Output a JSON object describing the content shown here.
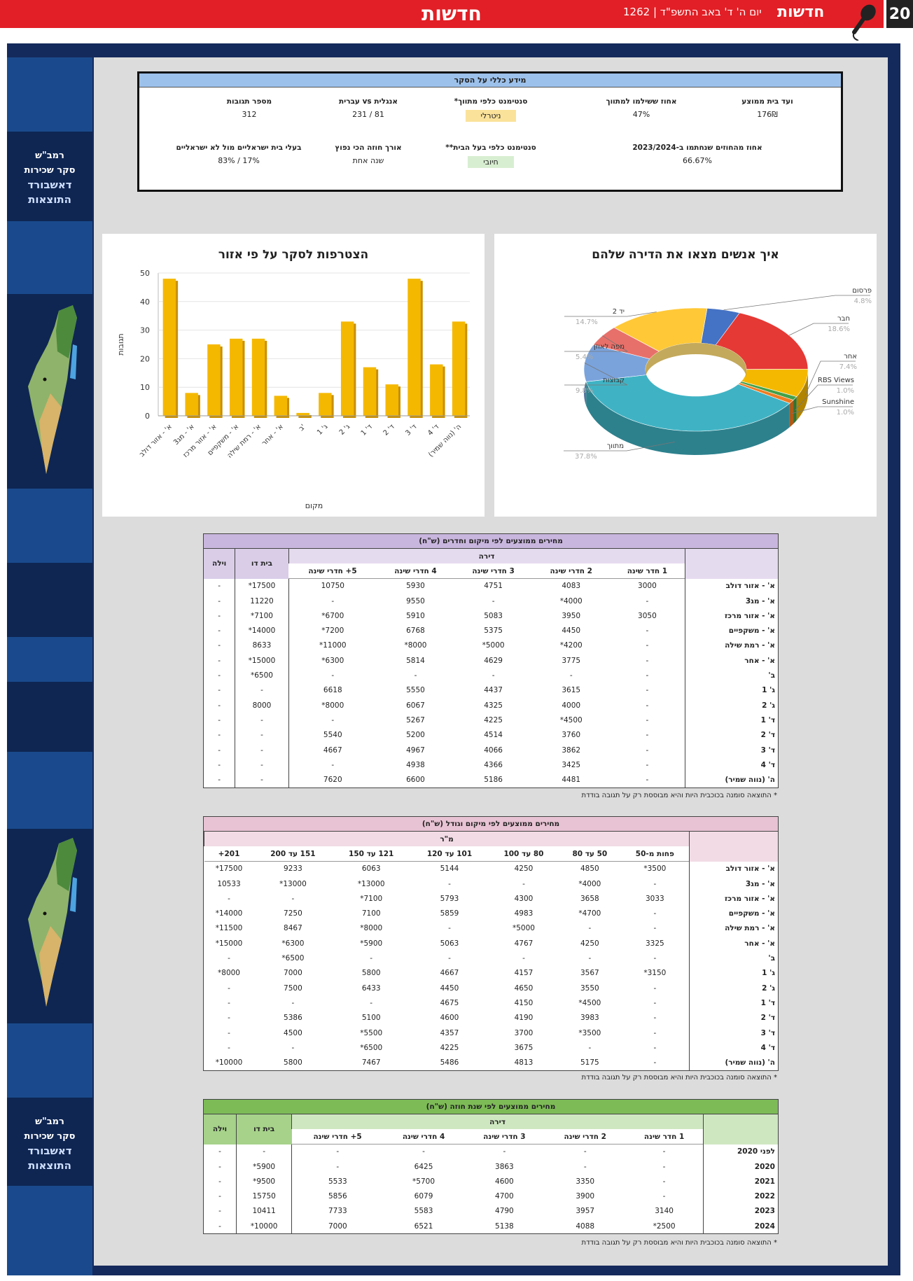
{
  "header": {
    "page_number": "20",
    "section": "חדשות",
    "date": "יום ה' ד' באב התשפ\"ד | 1262",
    "brand": "חדשות"
  },
  "side": {
    "label1_a": "רמב\"ש",
    "label1_b": "סקר שכירות",
    "label1_c": "דאשבורד",
    "label1_d": "התוצאות",
    "label2_a": "רמב\"ש",
    "label2_b": "סקר שכירות",
    "label2_c": "דאשבורד",
    "label2_d": "התוצאות"
  },
  "info": {
    "title": "מידע כללי על הסקר",
    "cells": [
      {
        "label": "ועד בית ממוצע",
        "value": "176₪"
      },
      {
        "label": "אחוז ששילמו למתווך",
        "value": "47%"
      },
      {
        "label": "סנטימנט כלפי מתווך*",
        "value": "ניטרלי"
      },
      {
        "label": "אנגלית vs עברית",
        "value": "81 / 231"
      },
      {
        "label": "מספר תגובות",
        "value": "312"
      },
      {
        "label": "אחוז מהחוזים שנחתמו ב-2023/2024",
        "value": "66.67%"
      },
      {
        "label": "סנטימנט כלפי בעל הבית**",
        "value": "חיובי"
      },
      {
        "label": "אורך חוזה הכי נפוץ",
        "value": "שנה אחת"
      },
      {
        "label": "בעלי בית ישראליים מול לא ישראליים",
        "value": "17% / 83%"
      }
    ]
  },
  "pie": {
    "title": "איך אנשים מצאו את הדירה שלהם",
    "slices": [
      {
        "name": "פרסום",
        "pct": "4.8%",
        "value": 4.8,
        "color": "#4472c4"
      },
      {
        "name": "חבר",
        "pct": "18.6%",
        "value": 18.6,
        "color": "#e53935"
      },
      {
        "name": "אחר",
        "pct": "7.4%",
        "value": 7.4,
        "color": "#f5b800"
      },
      {
        "name": "RBS Views",
        "pct": "1.0%",
        "value": 1.0,
        "color": "#43a047"
      },
      {
        "name": "Sunshine",
        "pct": "1.0%",
        "value": 1.0,
        "color": "#ef7d22"
      },
      {
        "name": "מתווך",
        "pct": "37.8%",
        "value": 37.8,
        "color": "#3fb3c4"
      },
      {
        "name": "קבוצות",
        "pct": "9.8%",
        "value": 9.8,
        "color": "#7aa3dc"
      },
      {
        "name": "מפה לאוזן",
        "pct": "5.4%",
        "value": 5.4,
        "color": "#e8706a"
      },
      {
        "name": "יד 2",
        "pct": "14.7%",
        "value": 14.7,
        "color": "#ffc837"
      }
    ]
  },
  "chart_data": {
    "type": "bar",
    "title": "הצטרפות לסקר על פי אזור",
    "xlabel": "מקום",
    "ylabel": "תגובות",
    "ylim": [
      0,
      50
    ],
    "yticks": [
      "0",
      "10",
      "20",
      "30",
      "40",
      "50"
    ],
    "categories": [
      "א' - אזור דולב",
      "א' - מג3",
      "א' - אזור מרכז",
      "א' - משקפיים",
      "א' - רמת שילה",
      "א' - אחר",
      "ב'",
      "ג' 1",
      "ג' 2",
      "ד' 1",
      "ד' 2",
      "ד' 3",
      "ד' 4",
      "ה' (נווה שמיר)"
    ],
    "values": [
      48,
      8,
      25,
      27,
      27,
      7,
      1,
      8,
      33,
      17,
      11,
      48,
      18,
      33
    ]
  },
  "table1": {
    "caption": "מחירים ממוצעים לפי מיקום וחדרים (ש\"ח)",
    "group": "דירה",
    "h_house": "בית דו",
    "h_villa": "וילה",
    "cols": [
      "1 חדר שינה",
      "2 חדרי שינה",
      "3 חדרי שינה",
      "4 חדרי שינה",
      "5+ חדרי שינה"
    ],
    "rows": [
      {
        "label": "א' - אזור דולב",
        "cells": [
          "3000",
          "4083",
          "4751",
          "5930",
          "10750",
          "17500*",
          "-"
        ]
      },
      {
        "label": "א' - מג3",
        "cells": [
          "-",
          "4000*",
          "-",
          "9550",
          "-",
          "11220",
          "-"
        ]
      },
      {
        "label": "א' - אזור מרכז",
        "cells": [
          "3050",
          "3950",
          "5083",
          "5910",
          "6700*",
          "7100*",
          "-"
        ]
      },
      {
        "label": "א' - משקפיים",
        "cells": [
          "-",
          "4450",
          "5375",
          "6768",
          "7200*",
          "14000*",
          "-"
        ]
      },
      {
        "label": "א' - רמת שילה",
        "cells": [
          "-",
          "4200*",
          "5000*",
          "8000*",
          "11000*",
          "8633",
          "-"
        ]
      },
      {
        "label": "א' - אחר",
        "cells": [
          "-",
          "3775",
          "4629",
          "5814",
          "6300*",
          "15000*",
          "-"
        ]
      },
      {
        "label": "ב'",
        "cells": [
          "-",
          "-",
          "-",
          "-",
          "-",
          "6500*",
          "-"
        ]
      },
      {
        "label": "ג' 1",
        "cells": [
          "-",
          "3615",
          "4437",
          "5550",
          "6618",
          "-",
          "-"
        ]
      },
      {
        "label": "ג' 2",
        "cells": [
          "-",
          "4000",
          "4325",
          "6067",
          "8000*",
          "8000",
          "-"
        ]
      },
      {
        "label": "ד' 1",
        "cells": [
          "-",
          "4500*",
          "4225",
          "5267",
          "-",
          "-",
          "-"
        ]
      },
      {
        "label": "ד' 2",
        "cells": [
          "-",
          "3760",
          "4514",
          "5200",
          "5540",
          "-",
          "-"
        ]
      },
      {
        "label": "ד' 3",
        "cells": [
          "-",
          "3862",
          "4066",
          "4967",
          "4667",
          "-",
          "-"
        ]
      },
      {
        "label": "ד' 4",
        "cells": [
          "-",
          "3425",
          "4366",
          "4938",
          "-",
          "-",
          "-"
        ]
      },
      {
        "label": "ה' (נווה שמיר)",
        "cells": [
          "-",
          "4481",
          "5186",
          "6600",
          "7620",
          "-",
          "-"
        ]
      }
    ],
    "note": "* התוצאה סומנה בכוכבית היות והיא מבוססת רק על תגובה בודדת"
  },
  "table2": {
    "caption": "מחירים ממוצעים לפי מיקום וגודל (ש\"ח)",
    "group": "מ\"ר",
    "cols": [
      "פחות מ-50",
      "50 עד 80",
      "80 עד 100",
      "101 עד 120",
      "121 עד 150",
      "151 עד 200",
      "201+"
    ],
    "rows": [
      {
        "label": "א' - אזור דולב",
        "cells": [
          "3500*",
          "4850",
          "4250",
          "5144",
          "6063",
          "9233",
          "17500*"
        ]
      },
      {
        "label": "א' - מג3",
        "cells": [
          "-",
          "4000*",
          "-",
          "-",
          "13000*",
          "13000*",
          "10533"
        ]
      },
      {
        "label": "א' - אזור מרכז",
        "cells": [
          "3033",
          "3658",
          "4300",
          "5793",
          "7100*",
          "-",
          "-"
        ]
      },
      {
        "label": "א' - משקפיים",
        "cells": [
          "-",
          "4700*",
          "4983",
          "5859",
          "7100",
          "7250",
          "14000*"
        ]
      },
      {
        "label": "א' - רמת שילה",
        "cells": [
          "-",
          "-",
          "5000*",
          "-",
          "8000*",
          "8467",
          "11500*"
        ]
      },
      {
        "label": "א' - אחר",
        "cells": [
          "3325",
          "4250",
          "4767",
          "5063",
          "5900*",
          "6300*",
          "15000*"
        ]
      },
      {
        "label": "ב'",
        "cells": [
          "-",
          "-",
          "-",
          "-",
          "-",
          "6500*",
          "-"
        ]
      },
      {
        "label": "ג' 1",
        "cells": [
          "3150*",
          "3567",
          "4157",
          "4667",
          "5800",
          "7000",
          "8000*"
        ]
      },
      {
        "label": "ג' 2",
        "cells": [
          "-",
          "3550",
          "4650",
          "4450",
          "6433",
          "7500",
          "-"
        ]
      },
      {
        "label": "ד' 1",
        "cells": [
          "-",
          "4500*",
          "4150",
          "4675",
          "-",
          "-",
          "-"
        ]
      },
      {
        "label": "ד' 2",
        "cells": [
          "-",
          "3983",
          "4190",
          "4600",
          "5100",
          "5386",
          "-"
        ]
      },
      {
        "label": "ד' 3",
        "cells": [
          "-",
          "3500*",
          "3700",
          "4357",
          "5500*",
          "4500",
          "-"
        ]
      },
      {
        "label": "ד' 4",
        "cells": [
          "-",
          "-",
          "3675",
          "4225",
          "6500*",
          "-",
          "-"
        ]
      },
      {
        "label": "ה' (נווה שמיר)",
        "cells": [
          "-",
          "5175",
          "4813",
          "5486",
          "7467",
          "5800",
          "10000*"
        ]
      }
    ],
    "note": "* התוצאה סומנה בכוכבית היות והיא מבוססת רק על תגובה בודדת"
  },
  "table3": {
    "caption": "מחירים ממוצעים לפי שנת חוזה (ש\"ח)",
    "group": "דירה",
    "h_house": "בית דו",
    "h_villa": "וילה",
    "cols": [
      "1 חדר שינה",
      "2 חדרי שינה",
      "3 חדרי שינה",
      "4 חדרי שינה",
      "5+ חדרי שינה"
    ],
    "rows": [
      {
        "label": "לפני 2020",
        "cells": [
          "-",
          "-",
          "-",
          "-",
          "-",
          "-",
          "-"
        ]
      },
      {
        "label": "2020",
        "cells": [
          "-",
          "-",
          "3863",
          "6425",
          "-",
          "5900*",
          "-"
        ]
      },
      {
        "label": "2021",
        "cells": [
          "-",
          "3350",
          "4600",
          "5700*",
          "5533",
          "9500*",
          "-"
        ]
      },
      {
        "label": "2022",
        "cells": [
          "-",
          "3900",
          "4700",
          "6079",
          "5856",
          "15750",
          "-"
        ]
      },
      {
        "label": "2023",
        "cells": [
          "3140",
          "3957",
          "4790",
          "5583",
          "7733",
          "10411",
          "-"
        ]
      },
      {
        "label": "2024",
        "cells": [
          "2500*",
          "4088",
          "5138",
          "6521",
          "7000",
          "10000*",
          "-"
        ]
      }
    ],
    "note": "* התוצאה סומנה בכוכבית היות והיא מבוססת רק על תגובה בודדת"
  },
  "colors": {
    "red": "#e21f26",
    "navy": "#152a5c",
    "blue": "#1a4a8d",
    "purple": "#c9b6de",
    "pink": "#e8c3d3",
    "green": "#7dbb57",
    "bar": "#f5b800"
  }
}
